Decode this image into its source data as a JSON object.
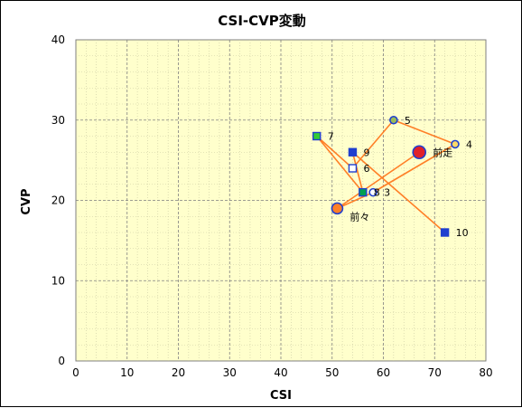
{
  "chart_data": {
    "type": "scatter",
    "title": "CSI-CVP変動",
    "xlabel": "CSI",
    "ylabel": "CVP",
    "xlim": [
      0,
      80
    ],
    "ylim": [
      0,
      40
    ],
    "xticks": [
      0,
      10,
      20,
      30,
      40,
      50,
      60,
      70,
      80
    ],
    "yticks": [
      0,
      10,
      20,
      30,
      40
    ],
    "grid": true,
    "plot_background": "#ffffcc",
    "grid_color": "#7f7f7f",
    "line_color": "#ff7f27",
    "points": [
      {
        "label": "前々",
        "x": 51,
        "y": 19,
        "shape": "circle",
        "fill": "#ff7f27",
        "stroke": "#1f3fcf",
        "r": 6
      },
      {
        "label": "3",
        "x": 58,
        "y": 21,
        "shape": "circle",
        "fill": "#ffffff",
        "stroke": "#1f3fcf",
        "r": 4
      },
      {
        "label": "4",
        "x": 74,
        "y": 27,
        "shape": "circle",
        "fill": "#ffd966",
        "stroke": "#1f3fcf",
        "r": 4
      },
      {
        "label": "5",
        "x": 62,
        "y": 30,
        "shape": "circle",
        "fill": "#9bbb59",
        "stroke": "#1f3fcf",
        "r": 4
      },
      {
        "label": "6",
        "x": 54,
        "y": 24,
        "shape": "square",
        "fill": "#ffffff",
        "stroke": "#1f3fcf",
        "r": 4
      },
      {
        "label": "7",
        "x": 47,
        "y": 28,
        "shape": "square",
        "fill": "#33cc33",
        "stroke": "#1f3fcf",
        "r": 4
      },
      {
        "label": "8",
        "x": 56,
        "y": 21,
        "shape": "square",
        "fill": "#00a050",
        "stroke": "#1f3fcf",
        "r": 4
      },
      {
        "label": "9",
        "x": 54,
        "y": 26,
        "shape": "square",
        "fill": "#1f3fcf",
        "stroke": "#1f3fcf",
        "r": 4
      },
      {
        "label": "10",
        "x": 72,
        "y": 16,
        "shape": "square",
        "fill": "#1f3fcf",
        "stroke": "#1f3fcf",
        "r": 4
      },
      {
        "label": "前走",
        "x": 67,
        "y": 26,
        "shape": "circle",
        "fill": "#e0202a",
        "stroke": "#1f3fcf",
        "r": 7
      }
    ],
    "path_order": [
      "10",
      "9",
      "8",
      "7",
      "6",
      "5",
      "4",
      "3",
      "前々",
      "前走"
    ]
  }
}
